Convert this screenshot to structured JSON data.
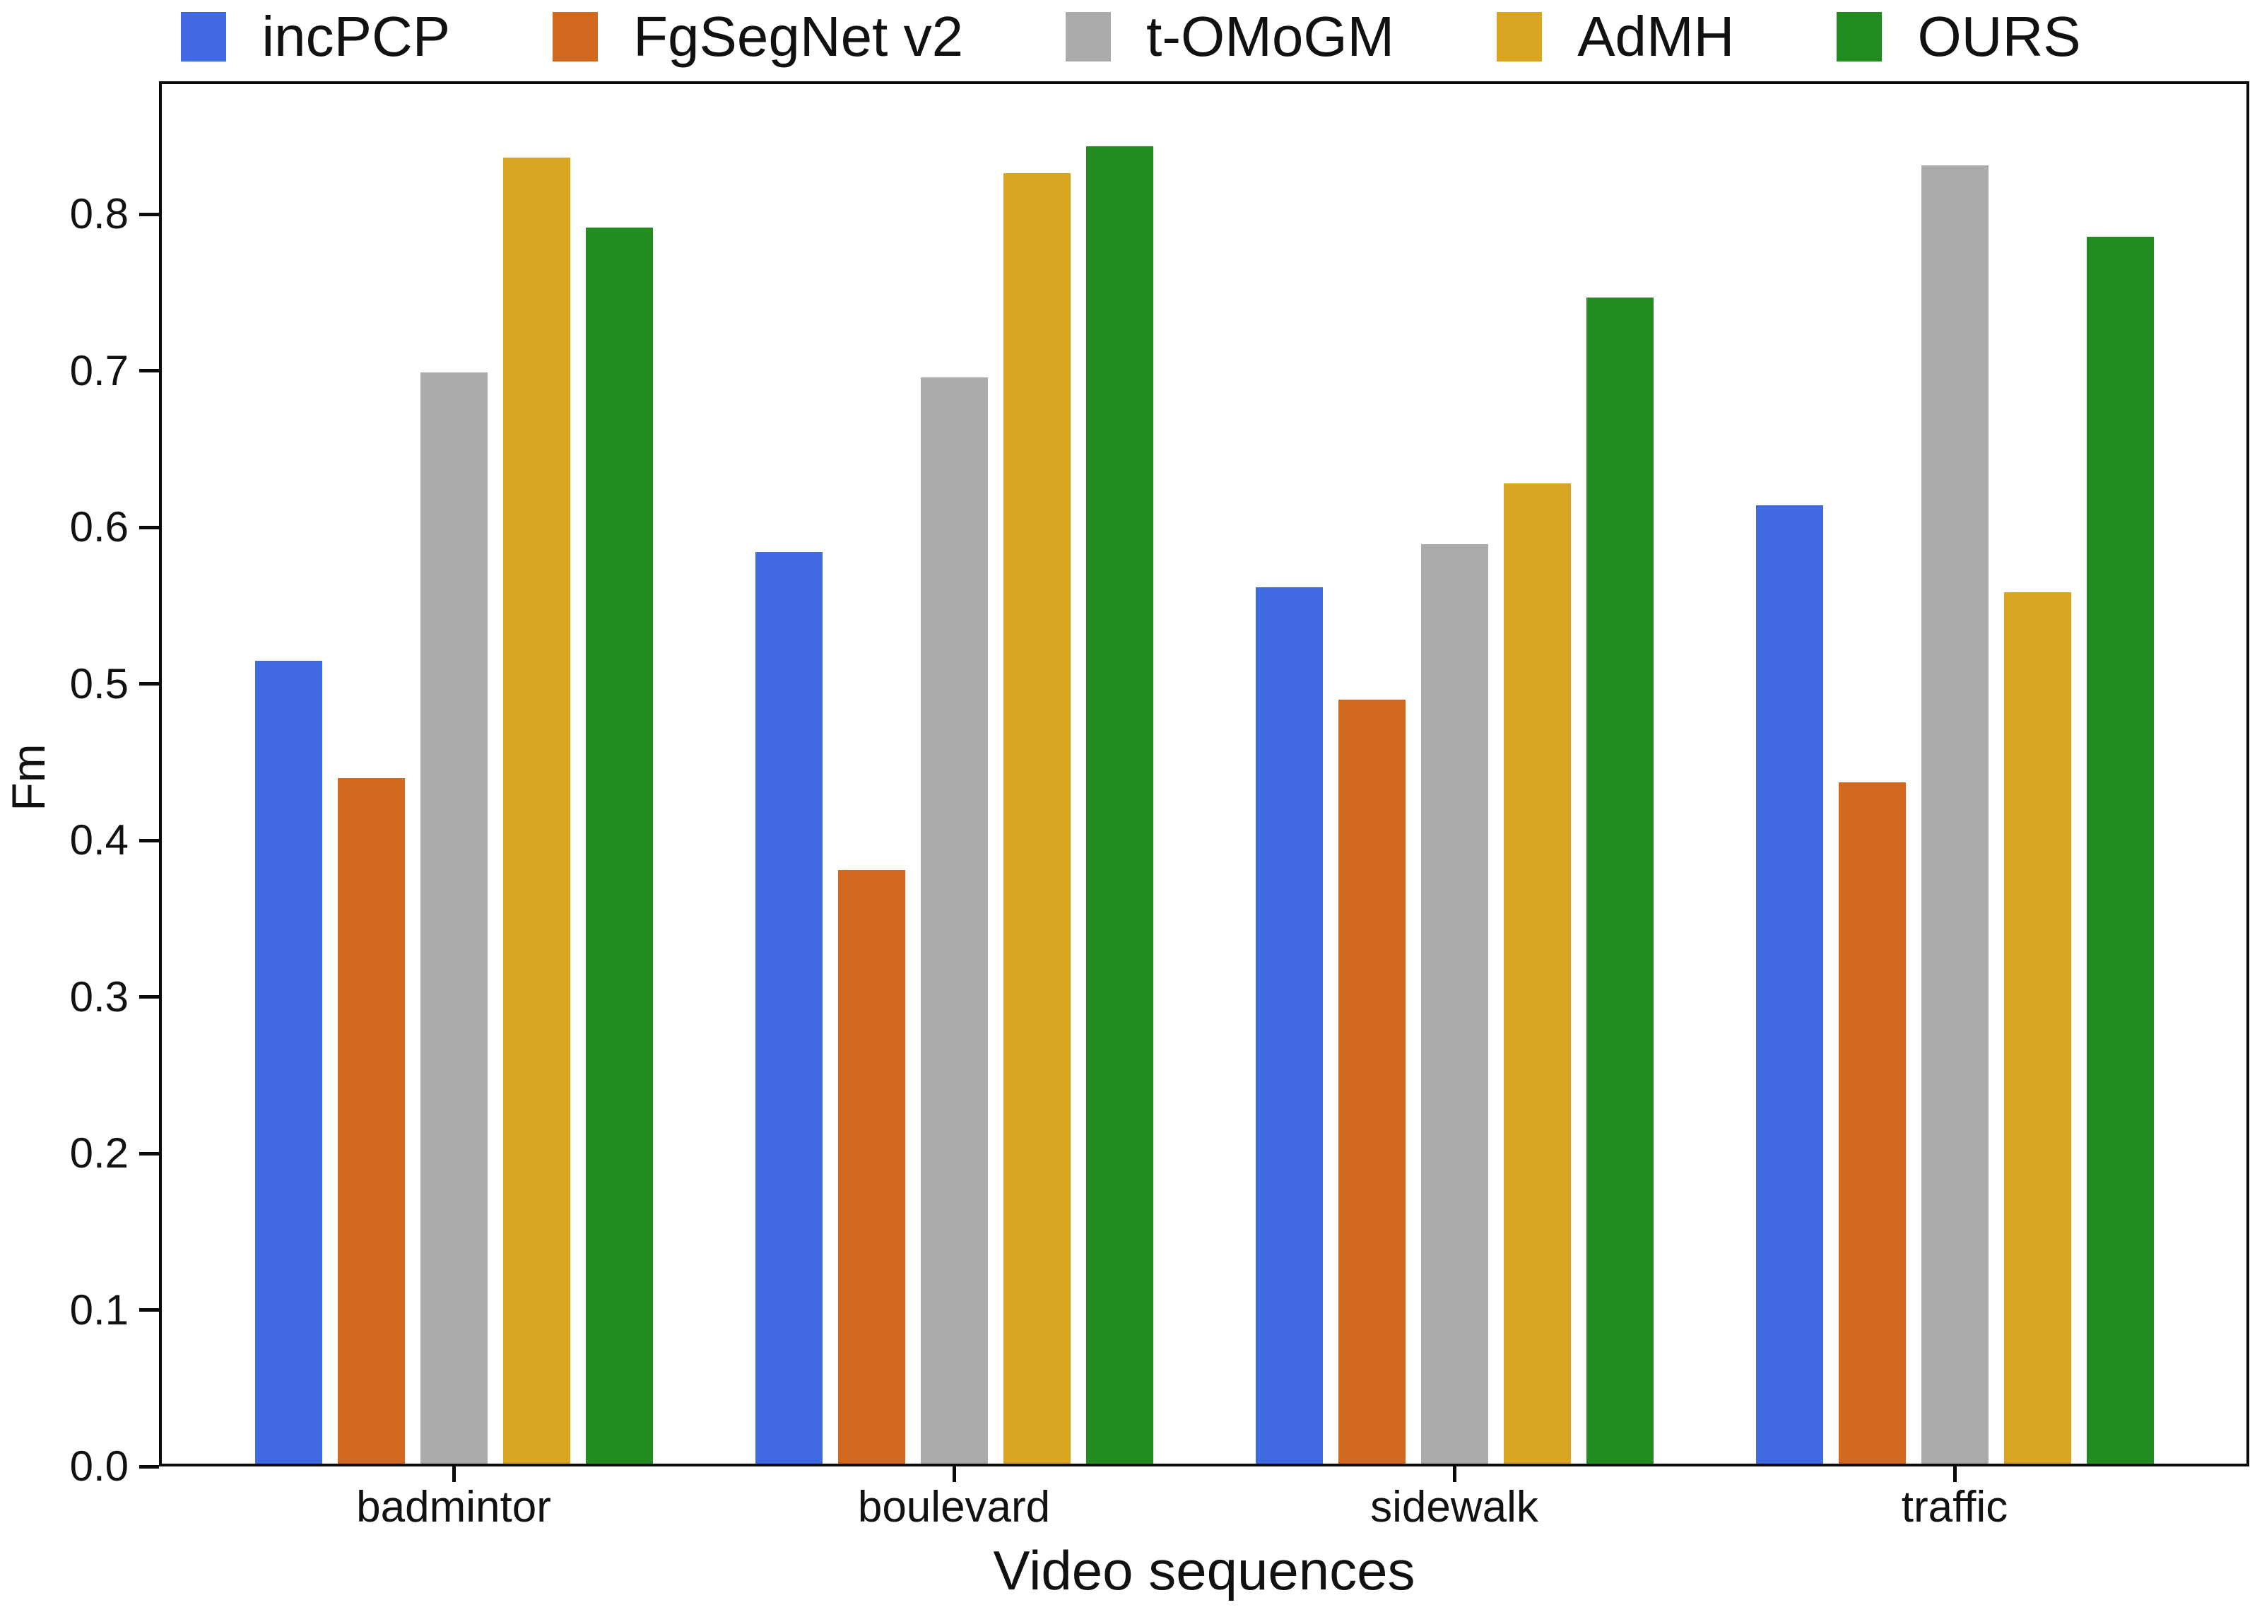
{
  "chart_data": {
    "type": "bar",
    "title": "",
    "xlabel": "Video sequences",
    "ylabel": "Fm",
    "categories": [
      "badmintor",
      "boulevard",
      "sidewalk",
      "traffic"
    ],
    "series": [
      {
        "name": "incPCP",
        "color": "#4169E1",
        "values": [
          0.515,
          0.585,
          0.562,
          0.615
        ]
      },
      {
        "name": "FgSegNet v2",
        "color": "#D2691E",
        "values": [
          0.44,
          0.381,
          0.49,
          0.437
        ]
      },
      {
        "name": "t-OMoGM",
        "color": "#ABABAB",
        "values": [
          0.7,
          0.697,
          0.59,
          0.833
        ]
      },
      {
        "name": "AdMH",
        "color": "#DAA520",
        "values": [
          0.838,
          0.828,
          0.629,
          0.559
        ]
      },
      {
        "name": "OURS",
        "color": "#228B22",
        "values": [
          0.793,
          0.845,
          0.748,
          0.787
        ]
      }
    ],
    "ylim": [
      0,
      0.885
    ],
    "yticks": [
      0.0,
      0.1,
      0.2,
      0.3,
      0.4,
      0.5,
      0.6,
      0.7,
      0.8
    ],
    "ytick_format_decimals": 1,
    "grid": false,
    "legend_position": "top",
    "axis_color": "#0a0a0a",
    "background_color": "#ffffff"
  }
}
